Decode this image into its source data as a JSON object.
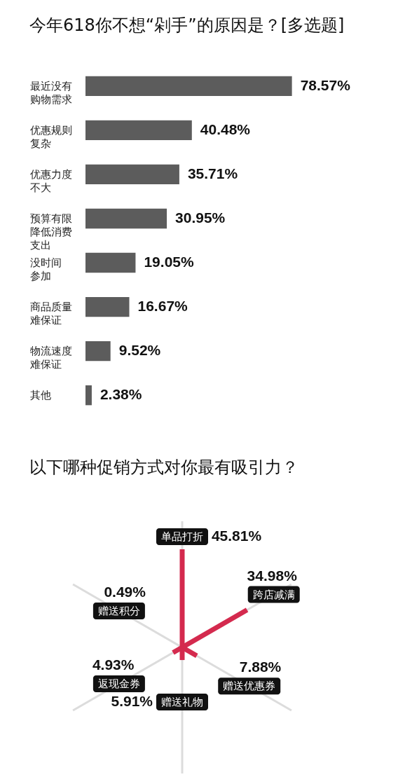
{
  "chart_data": [
    {
      "type": "bar",
      "orientation": "horizontal",
      "title": "今年618你不想“剁手”的原因是？[多选题]",
      "categories": [
        "最近没有购物需求",
        "优惠规则复杂",
        "优惠力度不大",
        "预算有限降低消费支出",
        "没时间参加",
        "商品质量难保证",
        "物流速度难保证",
        "其他"
      ],
      "values": [
        78.57,
        40.48,
        35.71,
        30.95,
        19.05,
        16.67,
        9.52,
        2.38
      ],
      "value_labels": [
        "78.57%",
        "40.48%",
        "35.71%",
        "30.95%",
        "19.05%",
        "16.67%",
        "9.52%",
        "2.38%"
      ],
      "color": "#5c5c5c",
      "tick_labels": "y"
    },
    {
      "type": "other",
      "title": "以下哪种促销方式对你最有吸引力？",
      "categories": [
        "单品打折",
        "跨店减满",
        "赠送优惠券",
        "赠送礼物",
        "返现金券",
        "赠送积分"
      ],
      "values": [
        45.81,
        34.98,
        7.88,
        5.91,
        4.93,
        0.49
      ],
      "value_labels": [
        "45.81%",
        "34.98%",
        "7.88%",
        "5.91%",
        "4.93%",
        "0.49%"
      ],
      "color": "#d42a4e"
    }
  ]
}
